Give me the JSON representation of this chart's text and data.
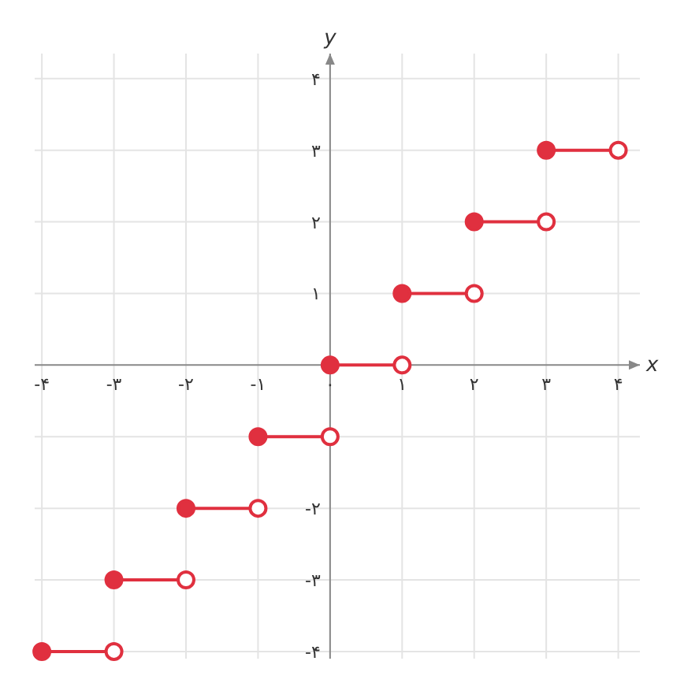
{
  "chart_data": {
    "type": "line",
    "xlabel": "x",
    "ylabel": "y",
    "xlim": [
      -4.1,
      4.3
    ],
    "ylim": [
      -4.1,
      4.35
    ],
    "xticks": [
      {
        "value": -4,
        "label": "-۴"
      },
      {
        "value": -3,
        "label": "-۳"
      },
      {
        "value": -2,
        "label": "-۲"
      },
      {
        "value": -1,
        "label": "-۱"
      },
      {
        "value": 0,
        "label": "۰"
      },
      {
        "value": 1,
        "label": "۱"
      },
      {
        "value": 2,
        "label": "۲"
      },
      {
        "value": 3,
        "label": "۳"
      },
      {
        "value": 4,
        "label": "۴"
      }
    ],
    "yticks": [
      {
        "value": -4,
        "label": "-۴"
      },
      {
        "value": -3,
        "label": "-۳"
      },
      {
        "value": -2,
        "label": "-۲"
      },
      {
        "value": -1,
        "label": null
      },
      {
        "value": 1,
        "label": "۱"
      },
      {
        "value": 2,
        "label": "۲"
      },
      {
        "value": 3,
        "label": "۳"
      },
      {
        "value": 4,
        "label": "۴"
      }
    ],
    "grid": true,
    "marker": "circle",
    "line_style": "solid",
    "series": [
      {
        "color": "#e0303f",
        "x": [
          -4,
          -3
        ],
        "values": [
          -4,
          -4
        ]
      },
      {
        "color": "#e0303f",
        "x": [
          -3,
          -2
        ],
        "values": [
          -3,
          -3
        ]
      },
      {
        "color": "#e0303f",
        "x": [
          -2,
          -1
        ],
        "values": [
          -2,
          -2
        ]
      },
      {
        "color": "#e0303f",
        "x": [
          -1,
          0
        ],
        "values": [
          -1,
          -1
        ]
      },
      {
        "color": "#e0303f",
        "x": [
          0,
          1
        ],
        "values": [
          0,
          0
        ]
      },
      {
        "color": "#e0303f",
        "x": [
          1,
          2
        ],
        "values": [
          1,
          1
        ]
      },
      {
        "color": "#e0303f",
        "x": [
          2,
          3
        ],
        "values": [
          2,
          2
        ]
      },
      {
        "color": "#e0303f",
        "x": [
          3,
          4
        ],
        "values": [
          3,
          3
        ]
      }
    ]
  }
}
